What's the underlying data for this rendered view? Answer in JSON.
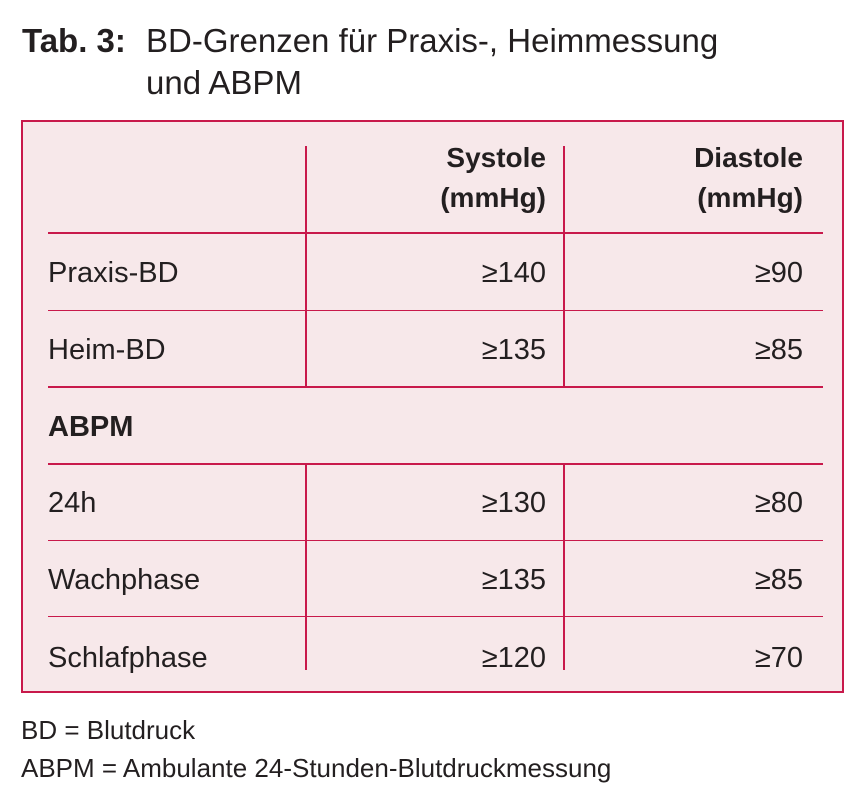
{
  "caption": {
    "label": "Tab. 3:",
    "title_line1": "BD-Grenzen für Praxis-, Heimmessung",
    "title_line2": "und ABPM"
  },
  "table": {
    "headers": {
      "systole_line1": "Systole",
      "systole_line2": "(mmHg)",
      "diastole_line1": "Diastole",
      "diastole_line2": "(mmHg)"
    },
    "rows_top": [
      {
        "label": "Praxis-BD",
        "systole": "≥140",
        "diastole": "≥90"
      },
      {
        "label": "Heim-BD",
        "systole": "≥135",
        "diastole": "≥85"
      }
    ],
    "group_label": "ABPM",
    "rows_abpm": [
      {
        "label": "24h",
        "systole": "≥130",
        "diastole": "≥80"
      },
      {
        "label": "Wachphase",
        "systole": "≥135",
        "diastole": "≥85"
      },
      {
        "label": "Schlafphase",
        "systole": "≥120",
        "diastole": "≥70"
      }
    ]
  },
  "footnotes": [
    "BD = Blutdruck",
    "ABPM = Ambulante 24-Stunden-Blutdruckmessung"
  ],
  "colors": {
    "border": "#c8194b",
    "table_background": "#f7e8ea",
    "text": "#231f20"
  }
}
